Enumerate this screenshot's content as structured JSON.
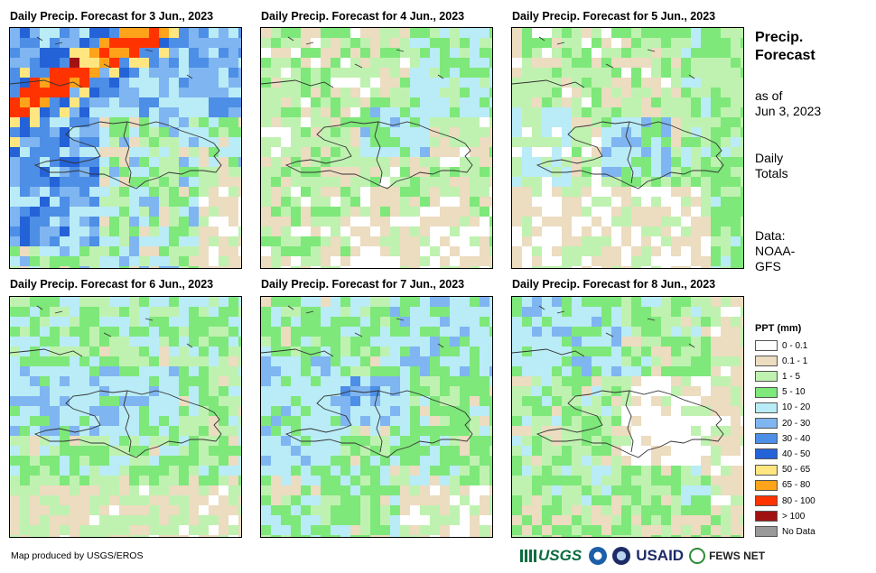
{
  "panels": [
    {
      "title": "Daily Precip. Forecast for 3 Jun., 2023",
      "pattern": "day3"
    },
    {
      "title": "Daily Precip. Forecast for 4 Jun., 2023",
      "pattern": "day4"
    },
    {
      "title": "Daily Precip. Forecast for 5 Jun., 2023",
      "pattern": "day5"
    },
    {
      "title": "Daily Precip. Forecast for 6 Jun., 2023",
      "pattern": "day6"
    },
    {
      "title": "Daily Precip. Forecast for 7 Jun., 2023",
      "pattern": "day7"
    },
    {
      "title": "Daily Precip. Forecast for 8 Jun., 2023",
      "pattern": "day8"
    }
  ],
  "sidebar": {
    "title_line1": "Precip.",
    "title_line2": "Forecast",
    "asof_line1": "as of",
    "asof_line2": "Jun 3, 2023",
    "totals_line1": "Daily",
    "totals_line2": "Totals",
    "data_line1": "Data:",
    "data_line2": "NOAA-",
    "data_line3": "GFS"
  },
  "legend": {
    "title": "PPT (mm)",
    "items": [
      {
        "label": "0 - 0.1",
        "color": "#ffffff"
      },
      {
        "label": "0.1 - 1",
        "color": "#ecdcc0"
      },
      {
        "label": "1 - 5",
        "color": "#bff2b0"
      },
      {
        "label": "5 - 10",
        "color": "#7ee87a"
      },
      {
        "label": "10 - 20",
        "color": "#b9ecf7"
      },
      {
        "label": "20 - 30",
        "color": "#7fb5f0"
      },
      {
        "label": "30 - 40",
        "color": "#4d8ee6"
      },
      {
        "label": "40 - 50",
        "color": "#2462d8"
      },
      {
        "label": "50 - 65",
        "color": "#ffe680"
      },
      {
        "label": "65 - 80",
        "color": "#ffa31a"
      },
      {
        "label": "80 - 100",
        "color": "#ff3300"
      },
      {
        "label": "> 100",
        "color": "#a01212"
      },
      {
        "label": "No Data",
        "color": "#999999"
      }
    ]
  },
  "footer": {
    "credit": "Map produced by USGS/EROS",
    "logos": {
      "usgs": "USGS",
      "usaid": "USAID",
      "fews": "FEWS NET",
      "noaa_icon": "noaa-logo",
      "doi_icon": "doi-logo"
    }
  }
}
